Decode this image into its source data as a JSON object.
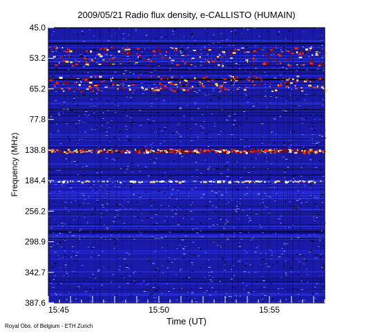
{
  "chart_data": {
    "type": "heatmap",
    "title": "2009/05/21  Radio flux density, e-CALLISTO (HUMAIN)",
    "xlabel": "Time (UT)",
    "ylabel": "Frequency (MHz)",
    "x_ticks": [
      "15:45",
      "15:50",
      "15:55"
    ],
    "x_tick_minutes": [
      0,
      5,
      10
    ],
    "x_range_minutes": [
      0,
      12.5
    ],
    "y_ticks": [
      "45.0",
      "53.2",
      "65.2",
      "77.8",
      "138.8",
      "184.4",
      "256.2",
      "298.9",
      "342.7",
      "387.6"
    ],
    "y_range_mhz": [
      45.0,
      387.6
    ],
    "y_inverted": true,
    "colormap": [
      "#000000",
      "#1a1aa8",
      "#2a35e0",
      "#7a1010",
      "#ff2a00",
      "#ffd070",
      "#ffffff"
    ],
    "intense_bands_mhz": [
      [
        50,
        56
      ],
      [
        60,
        66
      ],
      [
        136,
        142
      ],
      [
        184,
        186
      ]
    ],
    "credit": "Royal Obs. of Belgium - ETH Zurich"
  }
}
